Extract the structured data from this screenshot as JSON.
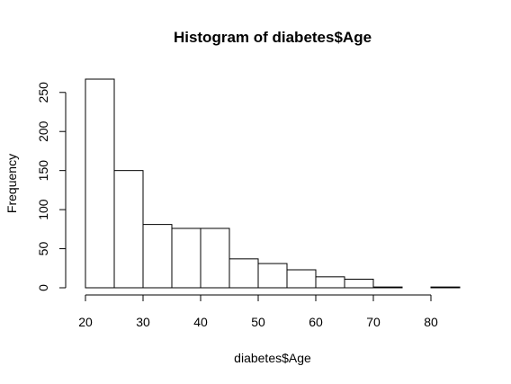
{
  "chart_data": {
    "type": "histogram",
    "title": "Histogram of diabetes$Age",
    "xlabel": "diabetes$Age",
    "ylabel": "Frequency",
    "bin_edges": [
      20,
      25,
      30,
      35,
      40,
      45,
      50,
      55,
      60,
      65,
      70,
      75,
      80,
      85
    ],
    "values": [
      267,
      150,
      81,
      76,
      76,
      37,
      31,
      23,
      14,
      11,
      1,
      0,
      1
    ],
    "xlim": [
      20,
      85
    ],
    "ylim": [
      0,
      267
    ],
    "x_ticks": [
      20,
      30,
      40,
      50,
      60,
      70,
      80
    ],
    "y_ticks": [
      0,
      50,
      100,
      150,
      200,
      250
    ],
    "grid": false,
    "bar_fill": "#ffffff",
    "bar_stroke": "#000000"
  }
}
